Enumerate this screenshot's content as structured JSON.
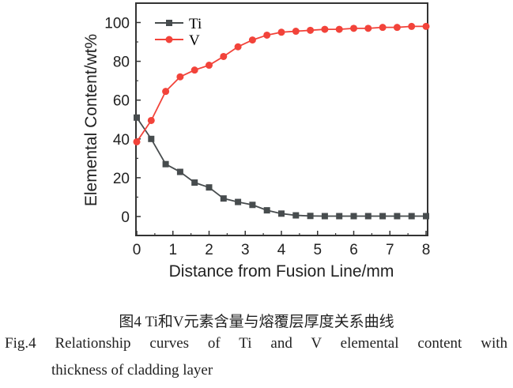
{
  "chart_data": {
    "type": "line",
    "xlabel": "Distance from Fusion Line/mm",
    "ylabel": "Elemental Content/wt%",
    "xlim": [
      0,
      8
    ],
    "ylim": [
      -10,
      110
    ],
    "xticks": [
      0,
      1,
      2,
      3,
      4,
      5,
      6,
      7,
      8
    ],
    "yticks": [
      0,
      20,
      40,
      60,
      80,
      100
    ],
    "grid": false,
    "legend": "top-left",
    "x": [
      0,
      0.4,
      0.8,
      1.2,
      1.6,
      2.0,
      2.4,
      2.8,
      3.2,
      3.6,
      4.0,
      4.4,
      4.8,
      5.2,
      5.6,
      6.0,
      6.4,
      6.8,
      7.2,
      7.6,
      8.0
    ],
    "series": [
      {
        "name": "Ti",
        "color": "#474c4e",
        "marker": "square",
        "values": [
          51,
          40,
          27,
          23,
          17.5,
          15,
          9.3,
          7.5,
          6,
          3.2,
          1.5,
          0.6,
          0.3,
          0.2,
          0.2,
          0.2,
          0.2,
          0.2,
          0.2,
          0.2,
          0.2
        ]
      },
      {
        "name": "V",
        "color": "#f2433a",
        "marker": "circle",
        "values": [
          38.5,
          49.5,
          64.5,
          72,
          75.5,
          78,
          82.5,
          87.5,
          91,
          93.5,
          95,
          95.5,
          96,
          96.5,
          96.5,
          97,
          97,
          97.5,
          97.5,
          98,
          98
        ]
      }
    ]
  },
  "caption": {
    "cn": "图4  Ti和V元素含量与熔覆层厚度关系曲线",
    "en_line1": "Fig.4  Relationship curves of Ti and V elemental content with",
    "en_line2": "thickness of cladding layer"
  }
}
